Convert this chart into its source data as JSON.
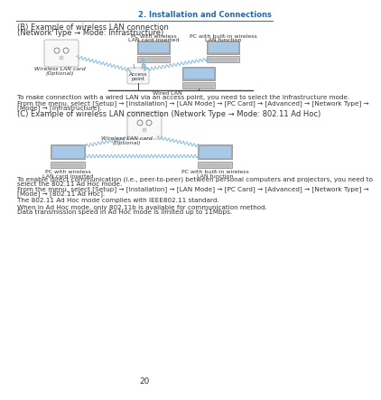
{
  "page_num": "20",
  "header_text": "2. Installation and Connections",
  "header_color": "#2966a3",
  "header_line_color": "#4472c4",
  "bg_color": "#ffffff",
  "section_b_title_l1": "(B) Example of wireless LAN connection",
  "section_b_title_l2": "(Network Type → Mode: Infrastructure)",
  "section_b_body1": "To make connection with a wired LAN via an access point, you need to select the Infrastructure mode.",
  "section_b_body2": "From the menu, select [Setup] → [Installation] → [LAN Mode] → [PC Card] → [Advanced] → [Network Type] →",
  "section_b_body3": "[Mode] → [Infrastructure].",
  "section_c_title": "(C) Example of wireless LAN connection (Network Type → Mode: 802.11 Ad Hoc)",
  "section_c_body1": "To enable direct communication (i.e., peer-to-peer) between personal computers and projectors, you need to",
  "section_c_body1b": "select the 802.11 Ad Hoc mode.",
  "section_c_body2": "From the menu, select [Setup] → [Installation] → [LAN Mode] → [PC Card] → [Advanced] → [Network Type] →",
  "section_c_body2b": "[Mode] → [802.11 Ad Hoc].",
  "section_c_body3": "The 802.11 Ad Hoc mode complies with IEEE802.11 standard.",
  "section_c_body4": "When in Ad Hoc mode, only 802.11b is available for communication method.",
  "section_c_body5": "Data transmission speed in Ad Hoc mode is limited up to 11Mbps.",
  "label_wireless_lan_card": "Wireless LAN card",
  "label_wireless_lan_card2": "(Optional)",
  "label_pc_wireless": "PC with wireless",
  "label_pc_wireless2": "LAN card inserted",
  "label_pc_builtin": "PC with built-in wireless",
  "label_pc_builtin2": "LAN function",
  "label_access_point": "Access",
  "label_access_point2": "point",
  "label_wired_lan": "Wired LAN",
  "device_fill": "#f0f0f0",
  "screen_fill": "#a8c8e8",
  "screen_fill2": "#b8b8b8",
  "line_color": "#88bbdd",
  "text_color": "#333333",
  "title_fontsize": 6.0,
  "body_fontsize": 5.2,
  "label_fontsize": 4.5,
  "header_fontsize": 6.5
}
